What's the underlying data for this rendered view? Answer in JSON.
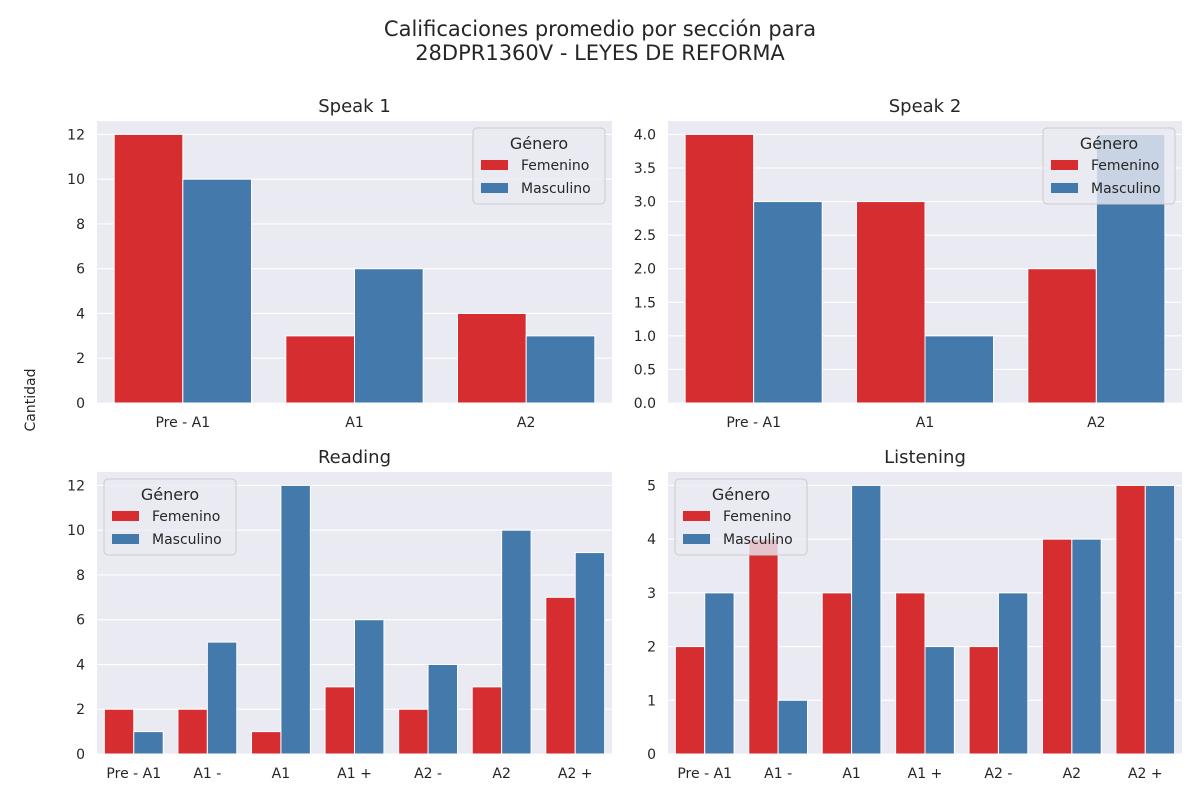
{
  "suptitle": {
    "line1": "Calificaciones promedio por sección para",
    "line2": "28DPR1360V - LEYES DE REFORMA"
  },
  "ylabel": "Cantidad",
  "colors": {
    "Femenino": "#d62d31",
    "Masculino": "#4479ab",
    "background": "#eaeaf2",
    "grid": "#ffffff"
  },
  "chart_data": [
    {
      "type": "bar",
      "title": "Speak 1",
      "categories": [
        "Pre - A1",
        "A1",
        "A2"
      ],
      "series": [
        {
          "name": "Femenino",
          "values": [
            12,
            3,
            4
          ]
        },
        {
          "name": "Masculino",
          "values": [
            10,
            6,
            3
          ]
        }
      ],
      "ylim": [
        0,
        12.6
      ],
      "yticks": [
        "0",
        "2",
        "4",
        "6",
        "8",
        "10",
        "12"
      ],
      "ytick_values": [
        0,
        2,
        4,
        6,
        8,
        10,
        12
      ],
      "legend": {
        "title": "Género",
        "placement": "top-right"
      },
      "grid": true
    },
    {
      "type": "bar",
      "title": "Speak 2",
      "categories": [
        "Pre - A1",
        "A1",
        "A2"
      ],
      "series": [
        {
          "name": "Femenino",
          "values": [
            4,
            3,
            2
          ]
        },
        {
          "name": "Masculino",
          "values": [
            3,
            1,
            4
          ]
        }
      ],
      "ylim": [
        0,
        4.2
      ],
      "yticks": [
        "0.0",
        "0.5",
        "1.0",
        "1.5",
        "2.0",
        "2.5",
        "3.0",
        "3.5",
        "4.0"
      ],
      "ytick_values": [
        0,
        0.5,
        1,
        1.5,
        2,
        2.5,
        3,
        3.5,
        4
      ],
      "legend": {
        "title": "Género",
        "placement": "top-right"
      },
      "grid": true
    },
    {
      "type": "bar",
      "title": "Reading",
      "categories": [
        "Pre - A1",
        "A1 -",
        "A1",
        "A1 +",
        "A2 -",
        "A2",
        "A2 +"
      ],
      "series": [
        {
          "name": "Femenino",
          "values": [
            2,
            2,
            1,
            3,
            2,
            3,
            7
          ]
        },
        {
          "name": "Masculino",
          "values": [
            1,
            5,
            12,
            6,
            4,
            10,
            9
          ]
        }
      ],
      "ylim": [
        0,
        12.6
      ],
      "yticks": [
        "0",
        "2",
        "4",
        "6",
        "8",
        "10",
        "12"
      ],
      "ytick_values": [
        0,
        2,
        4,
        6,
        8,
        10,
        12
      ],
      "legend": {
        "title": "Género",
        "placement": "top-left"
      },
      "grid": true
    },
    {
      "type": "bar",
      "title": "Listening",
      "categories": [
        "Pre - A1",
        "A1 -",
        "A1",
        "A1 +",
        "A2 -",
        "A2",
        "A2 +"
      ],
      "series": [
        {
          "name": "Femenino",
          "values": [
            2,
            4,
            3,
            3,
            2,
            4,
            5
          ]
        },
        {
          "name": "Masculino",
          "values": [
            3,
            1,
            5,
            2,
            3,
            4,
            5
          ]
        }
      ],
      "ylim": [
        0,
        5.25
      ],
      "yticks": [
        "0",
        "1",
        "2",
        "3",
        "4",
        "5"
      ],
      "ytick_values": [
        0,
        1,
        2,
        3,
        4,
        5
      ],
      "legend": {
        "title": "Género",
        "placement": "top-left"
      },
      "grid": true
    }
  ]
}
